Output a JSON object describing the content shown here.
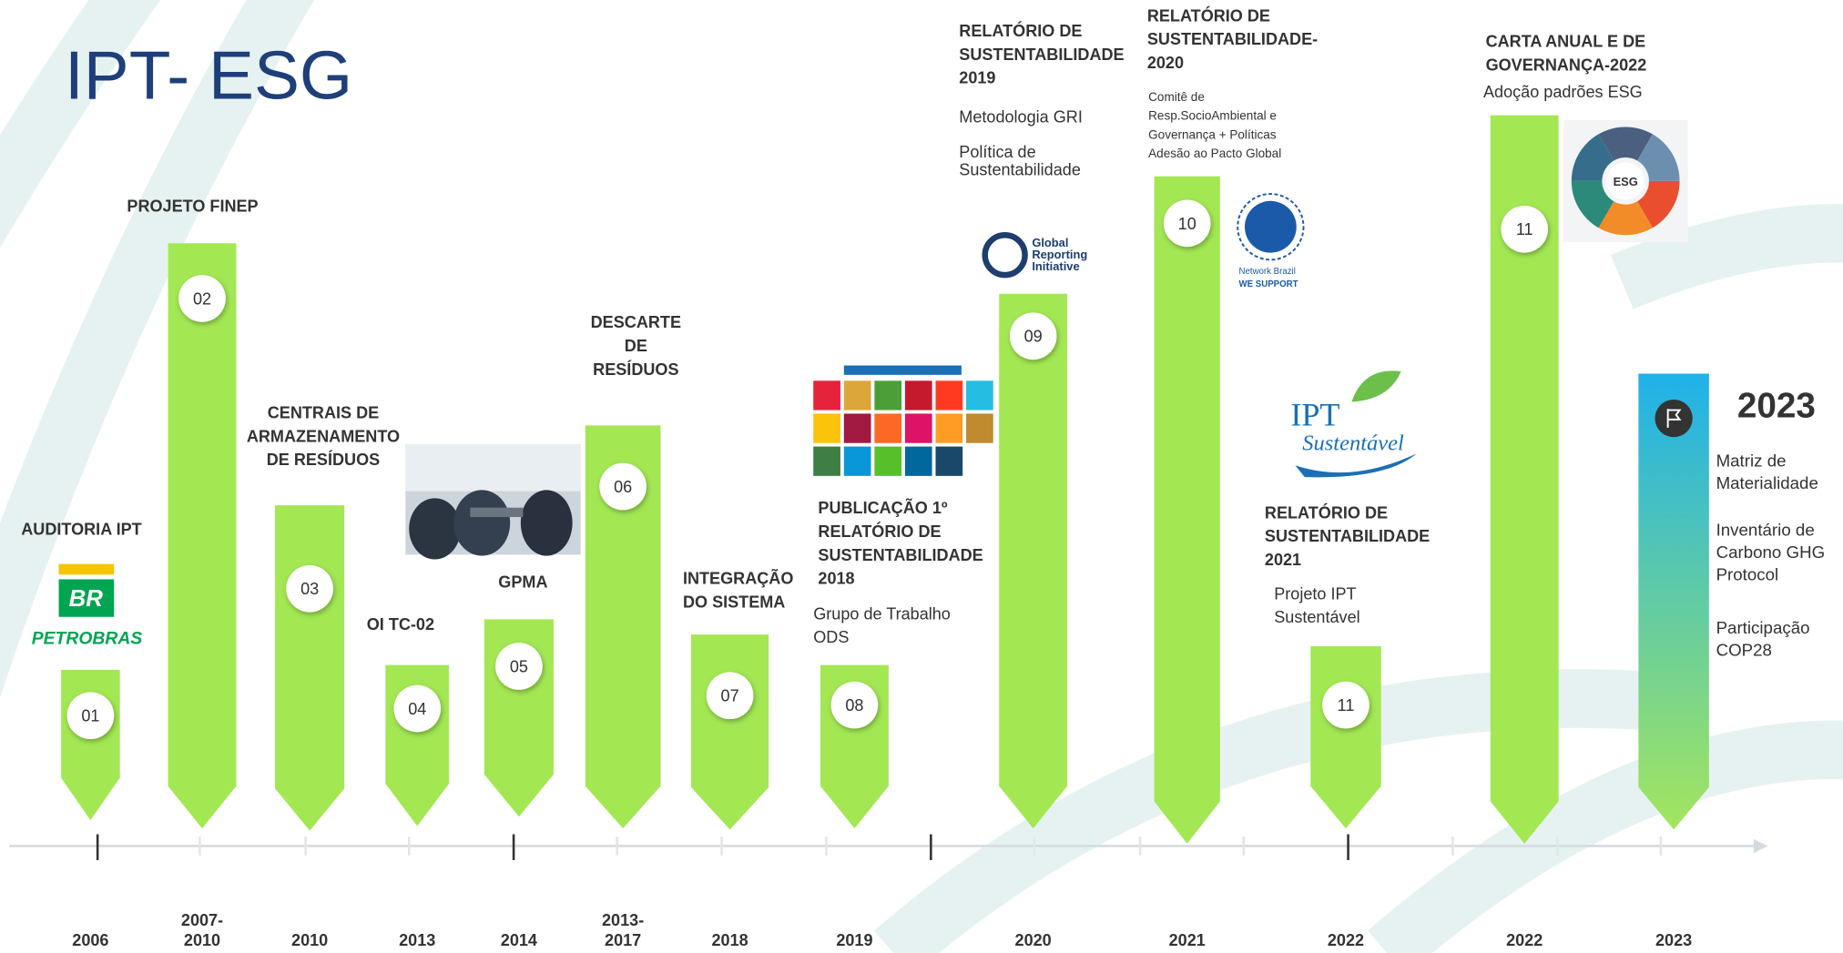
{
  "header": {
    "title": "IPT- ESG"
  },
  "milestones": [
    {
      "number": "01",
      "year": [
        "2006"
      ],
      "heading": [
        "AUDITORIA IPT"
      ],
      "details": []
    },
    {
      "number": "02",
      "year": [
        "2007-",
        "2010"
      ],
      "heading": [
        "PROJETO FINEP"
      ],
      "details": []
    },
    {
      "number": "03",
      "year": [
        "2010"
      ],
      "heading": [
        "CENTRAIS DE",
        "ARMAZENAMENTO",
        "DE RESÍDUOS"
      ],
      "details": []
    },
    {
      "number": "04",
      "year": [
        "2013"
      ],
      "heading": [
        "OI TC-02"
      ],
      "details": []
    },
    {
      "number": "05",
      "year": [
        "2014"
      ],
      "heading": [
        "GPMA"
      ],
      "details": []
    },
    {
      "number": "06",
      "year": [
        "2013-",
        "2017"
      ],
      "heading": [
        "DESCARTE",
        "DE",
        "RESÍDUOS"
      ],
      "details": []
    },
    {
      "number": "07",
      "year": [
        "2018"
      ],
      "heading": [
        "INTEGRAÇÃO",
        "DO SISTEMA"
      ],
      "details": []
    },
    {
      "number": "08",
      "year": [
        "2019"
      ],
      "heading": [
        "PUBLICAÇÃO 1º",
        "RELATÓRIO DE",
        "SUSTENTABILIDADE",
        "2018"
      ],
      "details": [
        "Grupo de Trabalho",
        "ODS"
      ]
    },
    {
      "number": "09",
      "year": [
        "2020"
      ],
      "heading": [
        "RELATÓRIO DE",
        "SUSTENTABILIDADE",
        "2019"
      ],
      "details": [
        "Metodologia GRI",
        "",
        "Política de",
        "Sustentabilidade"
      ]
    },
    {
      "number": "10",
      "year": [
        "2021"
      ],
      "heading": [
        "RELATÓRIO DE",
        "SUSTENTABILIDADE-",
        "2020"
      ],
      "details": [
        "Comitê de",
        "Resp.SocioAmbiental e",
        "Governança +  Políticas",
        "Adesão ao Pacto Global"
      ]
    },
    {
      "number": "11",
      "year": [
        "2022"
      ],
      "heading": [
        "RELATÓRIO DE",
        "SUSTENTABILIDADE",
        "2021"
      ],
      "details": [
        "Projeto IPT",
        "Sustentável"
      ]
    },
    {
      "number": "11",
      "year": [
        "2022"
      ],
      "heading": [
        "CARTA ANUAL E DE",
        "GOVERNANÇA-2022"
      ],
      "details": [
        "Adoção padrões ESG"
      ]
    }
  ],
  "final": {
    "heading": "2023",
    "year": "2023",
    "items": [
      [
        "Matriz de",
        "Materialidade"
      ],
      [
        "Inventário de",
        "Carbono GHG",
        "Protocol"
      ],
      [
        "Participação",
        "COP28"
      ]
    ]
  },
  "logos": {
    "petrobras": [
      "BR",
      "PETROBRAS"
    ],
    "gri": [
      "Global",
      "Reporting",
      "Initiative"
    ],
    "un_global_compact": [
      "Network Brazil",
      "WE SUPPORT"
    ],
    "ipt_sustentavel": [
      "IPT",
      "Sustentável"
    ],
    "esg_wheel": "ESG"
  }
}
